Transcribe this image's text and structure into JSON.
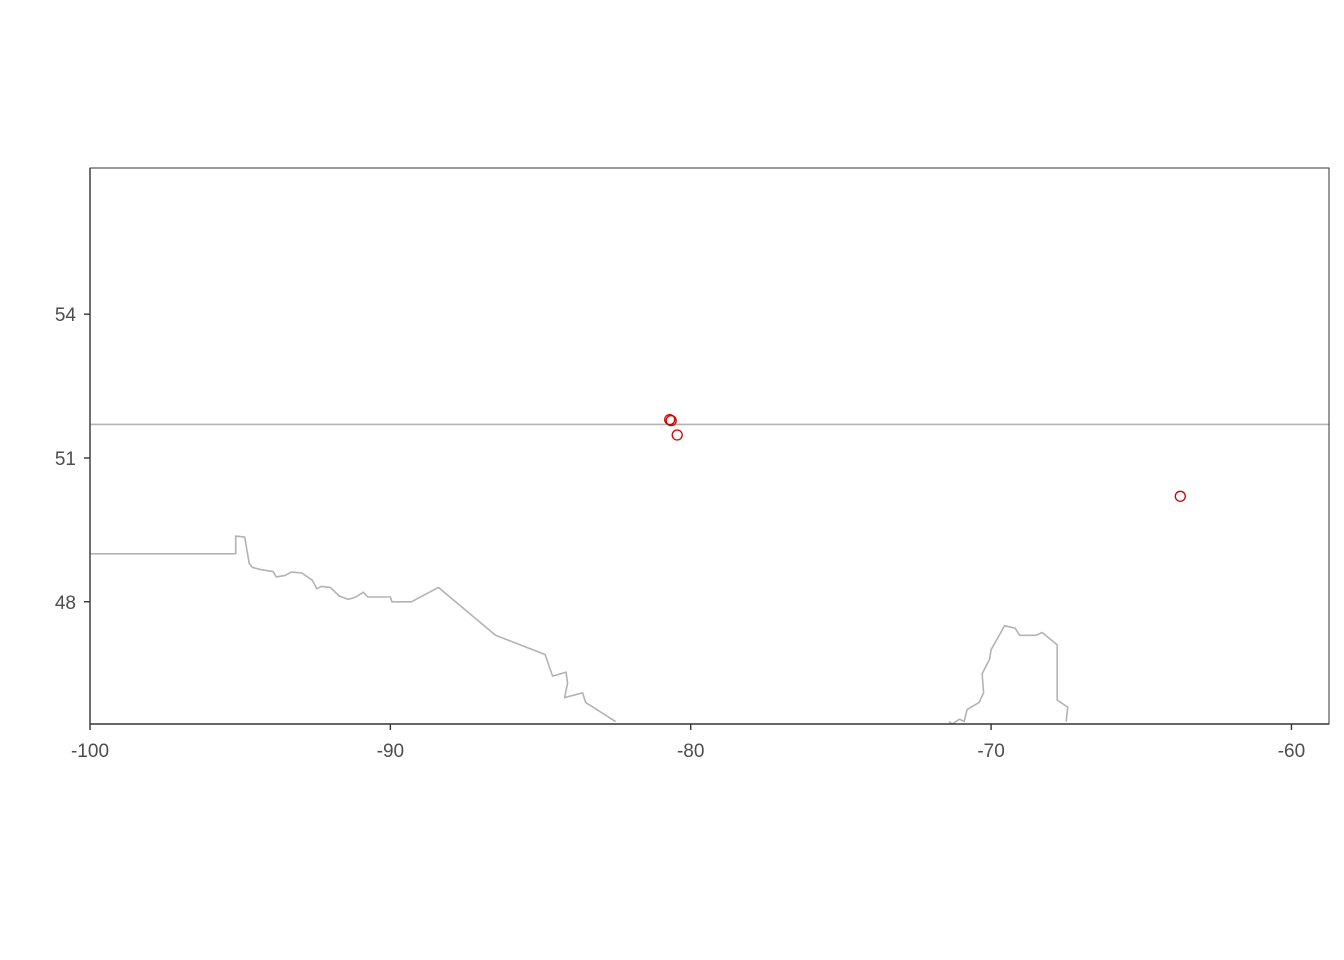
{
  "chart_data": {
    "type": "scatter",
    "title": "",
    "xlabel": "",
    "ylabel": "",
    "xlim": [
      -100,
      -58.75
    ],
    "ylim": [
      45.45,
      57.05
    ],
    "x_ticks": [
      -100,
      -90,
      -80,
      -70,
      -60
    ],
    "y_ticks": [
      48,
      51,
      54
    ],
    "x_tick_labels": [
      "-100",
      "-90",
      "-80",
      "-70",
      "-60"
    ],
    "y_tick_labels": [
      "48",
      "51",
      "54"
    ],
    "grid": false,
    "legend": "none",
    "point_color": "#cc0000",
    "boundary_color": "#b3b3b3",
    "points": [
      {
        "lon": -80.7,
        "lat": 51.8
      },
      {
        "lon": -80.65,
        "lat": 51.78
      },
      {
        "lon": -80.45,
        "lat": 51.48
      },
      {
        "lon": -63.7,
        "lat": 50.2
      }
    ],
    "boundaries": [
      {
        "id": "parallel-line",
        "coords": [
          [
            -100,
            51.7
          ],
          [
            -58.75,
            51.7
          ]
        ]
      },
      {
        "id": "border-west",
        "coords": [
          [
            -100,
            49.0
          ],
          [
            -95.15,
            49.0
          ],
          [
            -95.15,
            49.37
          ],
          [
            -94.85,
            49.35
          ],
          [
            -94.7,
            48.8
          ],
          [
            -94.6,
            48.72
          ],
          [
            -94.3,
            48.67
          ],
          [
            -93.9,
            48.63
          ],
          [
            -93.8,
            48.52
          ],
          [
            -93.5,
            48.55
          ],
          [
            -93.3,
            48.62
          ],
          [
            -92.95,
            48.6
          ],
          [
            -92.6,
            48.45
          ],
          [
            -92.45,
            48.27
          ],
          [
            -92.3,
            48.32
          ],
          [
            -92.0,
            48.3
          ],
          [
            -91.7,
            48.12
          ],
          [
            -91.4,
            48.05
          ],
          [
            -91.15,
            48.1
          ],
          [
            -90.9,
            48.2
          ],
          [
            -90.75,
            48.1
          ],
          [
            -90.0,
            48.1
          ],
          [
            -89.95,
            48.0
          ],
          [
            -89.3,
            48.0
          ],
          [
            -88.4,
            48.3
          ],
          [
            -86.5,
            47.3
          ],
          [
            -84.85,
            46.9
          ],
          [
            -84.6,
            46.45
          ],
          [
            -84.15,
            46.53
          ],
          [
            -84.1,
            46.3
          ],
          [
            -84.2,
            46.0
          ],
          [
            -83.9,
            46.05
          ],
          [
            -83.6,
            46.1
          ],
          [
            -83.5,
            45.9
          ],
          [
            -82.5,
            45.5
          ]
        ]
      },
      {
        "id": "border-east",
        "coords": [
          [
            -71.4,
            45.5
          ],
          [
            -71.3,
            45.45
          ],
          [
            -71.05,
            45.55
          ],
          [
            -70.9,
            45.5
          ],
          [
            -70.8,
            45.75
          ],
          [
            -70.4,
            45.9
          ],
          [
            -70.25,
            46.1
          ],
          [
            -70.3,
            46.5
          ],
          [
            -70.05,
            46.8
          ],
          [
            -70.0,
            47.0
          ],
          [
            -69.55,
            47.5
          ],
          [
            -69.2,
            47.45
          ],
          [
            -69.05,
            47.3
          ],
          [
            -68.5,
            47.3
          ],
          [
            -68.3,
            47.36
          ],
          [
            -67.8,
            47.1
          ],
          [
            -67.8,
            45.95
          ],
          [
            -67.45,
            45.8
          ],
          [
            -67.5,
            45.5
          ]
        ]
      }
    ]
  }
}
